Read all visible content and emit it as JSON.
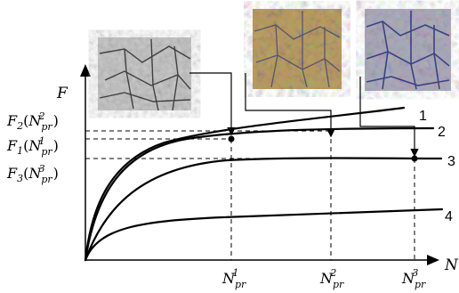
{
  "chart_data": {
    "type": "line",
    "axes": {
      "y_label": "F",
      "x_label": "N",
      "grid": false
    },
    "y_tick_labels": [
      {
        "id": "F2",
        "base": "F",
        "sub": "2",
        "arg_base": "N",
        "arg_sub": "pr",
        "arg_sup": "2"
      },
      {
        "id": "F1",
        "base": "F",
        "sub": "1",
        "arg_base": "N",
        "arg_sub": "pr",
        "arg_sup": "1"
      },
      {
        "id": "F3",
        "base": "F",
        "sub": "3",
        "arg_base": "N",
        "arg_sub": "pr",
        "arg_sup": "3"
      }
    ],
    "x_tick_labels": [
      {
        "id": "N1",
        "base": "N",
        "sub": "pr",
        "sup": "1"
      },
      {
        "id": "N2",
        "base": "N",
        "sub": "pr",
        "sup": "2"
      },
      {
        "id": "N3",
        "base": "N",
        "sub": "pr",
        "sup": "3"
      }
    ],
    "series": [
      {
        "name": "1",
        "description": "highest, keeps rising",
        "end_level": 0.79
      },
      {
        "name": "2",
        "description": "saturates near F2",
        "end_level": 0.73
      },
      {
        "name": "3",
        "description": "saturates at F3",
        "end_level": 0.61
      },
      {
        "name": "4",
        "description": "lowest, slow rise",
        "end_level": 0.36
      }
    ],
    "reference_points": [
      {
        "x_tick": "N1",
        "y_tick": "F1",
        "on_series": "1",
        "marker": "dot"
      },
      {
        "x_tick": "N2",
        "y_tick": "F2",
        "on_series": "2",
        "marker": "arrow"
      },
      {
        "x_tick": "N3",
        "y_tick": "F3",
        "on_series": "3",
        "marker": "dot"
      }
    ],
    "insets": [
      {
        "name": "micrograph-1",
        "style": "grayscale",
        "points_to": "N1"
      },
      {
        "name": "micrograph-2",
        "style": "color",
        "points_to": "N2"
      },
      {
        "name": "micrograph-3",
        "style": "color",
        "points_to": "N3"
      }
    ]
  }
}
